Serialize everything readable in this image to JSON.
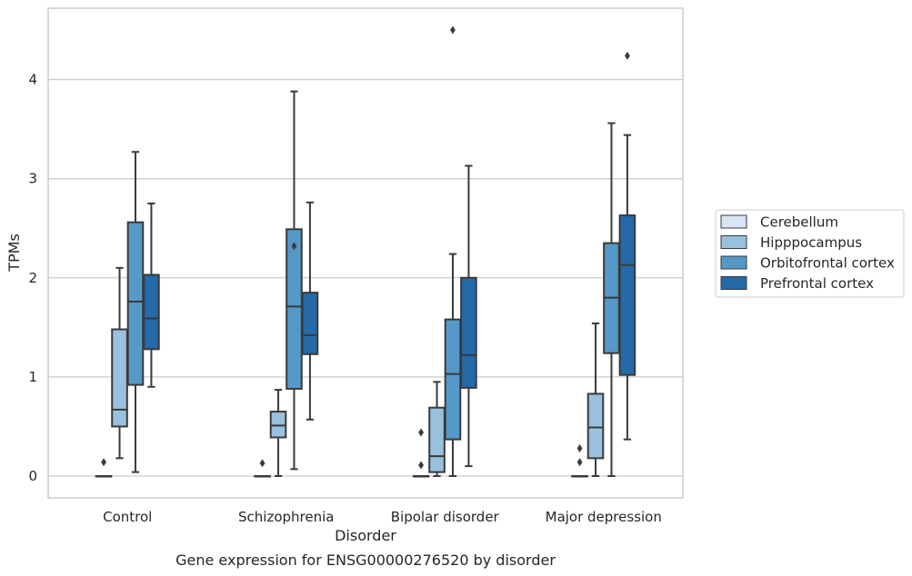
{
  "chart_data": {
    "type": "boxplot",
    "title": "Gene expression for ENSG00000276520 by disorder",
    "xlabel": "Disorder",
    "ylabel": "TPMs",
    "ylim": [
      -0.22,
      4.72
    ],
    "yticks": [
      0,
      1,
      2,
      3,
      4
    ],
    "grid": "horizontal",
    "legend_position": "right",
    "categories": [
      "Control",
      "Schizophrenia",
      "Bipolar disorder",
      "Major depression"
    ],
    "series": [
      {
        "name": "Cerebellum",
        "color": "#d6e5f4",
        "boxes": [
          {
            "whislo": 0,
            "q1": 0,
            "med": 0,
            "q3": 0,
            "whishi": 0,
            "fliers": [
              0.14
            ]
          },
          {
            "whislo": 0,
            "q1": 0,
            "med": 0,
            "q3": 0,
            "whishi": 0,
            "fliers": [
              0.13
            ]
          },
          {
            "whislo": 0,
            "q1": 0,
            "med": 0,
            "q3": 0,
            "whishi": 0,
            "fliers": [
              0.11,
              0.44
            ]
          },
          {
            "whislo": 0,
            "q1": 0,
            "med": 0,
            "q3": 0,
            "whishi": 0,
            "fliers": [
              0.14,
              0.28
            ]
          }
        ]
      },
      {
        "name": "Hipppocampus",
        "color": "#98c1dd",
        "boxes": [
          {
            "whislo": 0.18,
            "q1": 0.5,
            "med": 0.67,
            "q3": 1.48,
            "whishi": 2.1,
            "fliers": []
          },
          {
            "whislo": 0,
            "q1": 0.39,
            "med": 0.51,
            "q3": 0.65,
            "whishi": 0.87,
            "fliers": []
          },
          {
            "whislo": 0,
            "q1": 0.04,
            "med": 0.2,
            "q3": 0.69,
            "whishi": 0.95,
            "fliers": []
          },
          {
            "whislo": 0,
            "q1": 0.18,
            "med": 0.49,
            "q3": 0.83,
            "whishi": 1.54,
            "fliers": []
          }
        ]
      },
      {
        "name": "Orbitofrontal cortex",
        "color": "#5599c8",
        "boxes": [
          {
            "whislo": 0.04,
            "q1": 0.92,
            "med": 1.76,
            "q3": 2.56,
            "whishi": 3.27,
            "fliers": []
          },
          {
            "whislo": 0.07,
            "q1": 0.88,
            "med": 1.71,
            "q3": 2.49,
            "whishi": 3.88,
            "fliers": [
              2.32
            ]
          },
          {
            "whislo": 0,
            "q1": 0.37,
            "med": 1.03,
            "q3": 1.58,
            "whishi": 2.24,
            "fliers": [
              4.5
            ]
          },
          {
            "whislo": 0,
            "q1": 1.24,
            "med": 1.8,
            "q3": 2.35,
            "whishi": 3.56,
            "fliers": []
          }
        ]
      },
      {
        "name": "Prefrontal cortex",
        "color": "#2469a8",
        "boxes": [
          {
            "whislo": 0.9,
            "q1": 1.28,
            "med": 1.59,
            "q3": 2.03,
            "whishi": 2.75,
            "fliers": []
          },
          {
            "whislo": 0.57,
            "q1": 1.23,
            "med": 1.42,
            "q3": 1.85,
            "whishi": 2.76,
            "fliers": []
          },
          {
            "whislo": 0.1,
            "q1": 0.89,
            "med": 1.22,
            "q3": 2.0,
            "whishi": 3.13,
            "fliers": []
          },
          {
            "whislo": 0.37,
            "q1": 1.02,
            "med": 2.13,
            "q3": 2.63,
            "whishi": 3.44,
            "fliers": [
              4.24
            ]
          }
        ]
      }
    ]
  }
}
